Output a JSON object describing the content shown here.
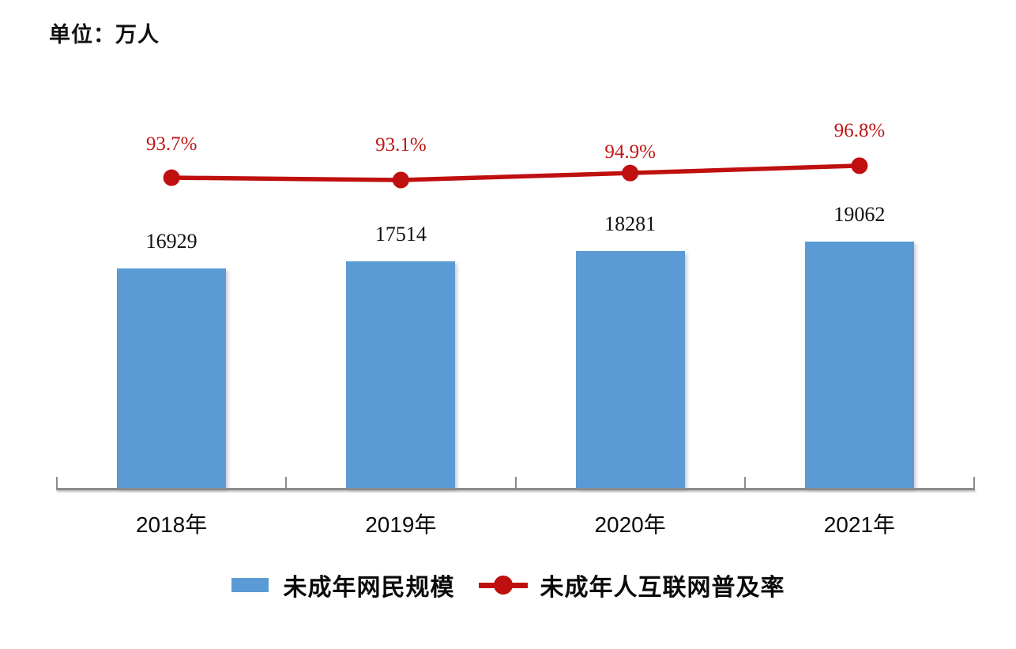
{
  "chart_data": {
    "type": "bar+line",
    "title": "",
    "unit_label": "单位：万人",
    "categories": [
      "2018年",
      "2019年",
      "2020年",
      "2021年"
    ],
    "series": [
      {
        "name": "未成年网民规模",
        "type": "bar",
        "values": [
          16929,
          17514,
          18281,
          19062
        ],
        "value_labels": [
          "16929",
          "17514",
          "18281",
          "19062"
        ],
        "color": "#5B9BD5",
        "axis": "primary"
      },
      {
        "name": "未成年人互联网普及率",
        "type": "line",
        "values": [
          93.7,
          93.1,
          94.9,
          96.8
        ],
        "value_labels": [
          "93.7%",
          "93.1%",
          "94.9%",
          "96.8%"
        ],
        "color": "#C00F0F",
        "label_color": "#C01515",
        "axis": "secondary"
      }
    ],
    "ylim_primary": [
      0,
      33000
    ],
    "grid": false,
    "legend_position": "bottom",
    "axis_color": "#8C8C8C",
    "text_color": "#111111",
    "background": "#FFFFFF"
  }
}
